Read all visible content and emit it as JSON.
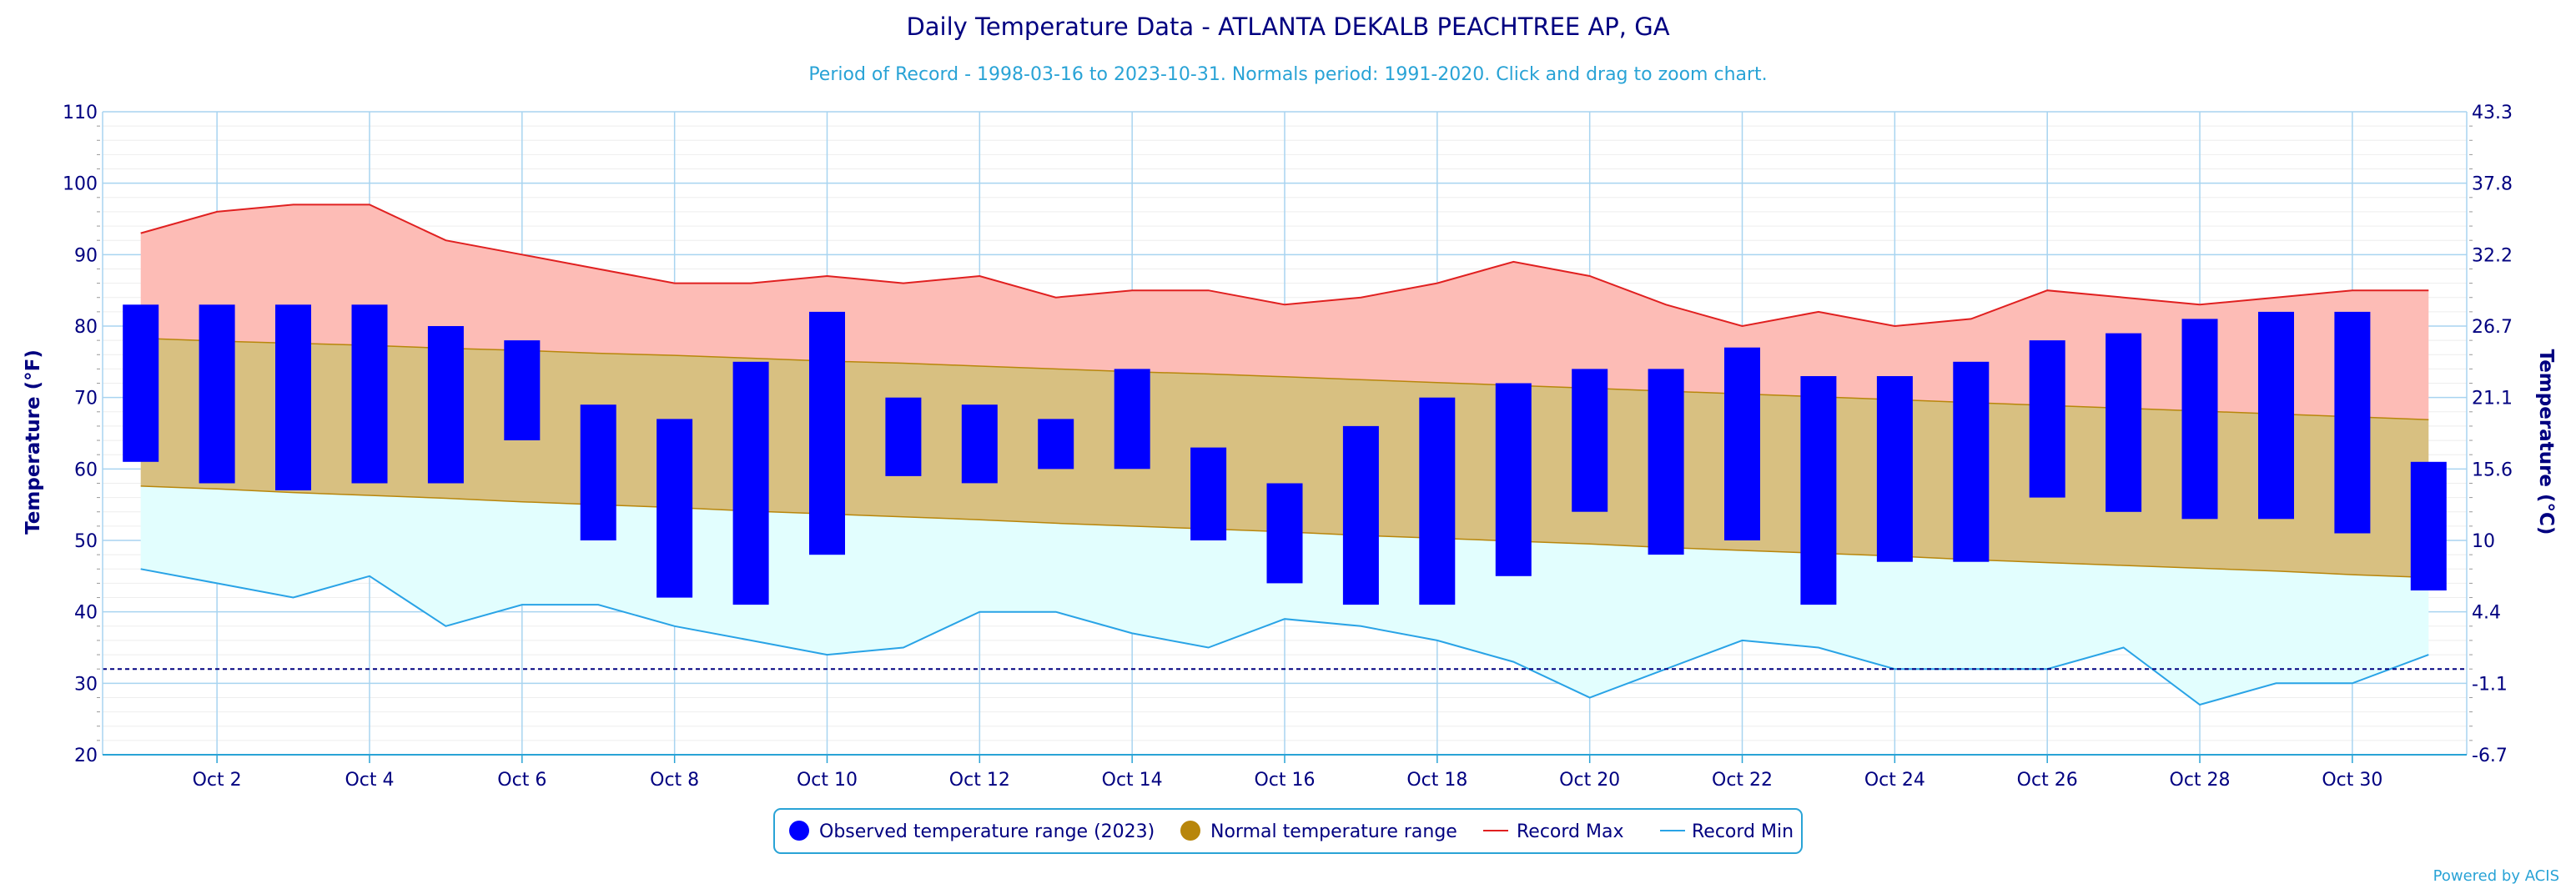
{
  "chart_data": {
    "type": "bar",
    "title": "Daily Temperature Data - ATLANTA DEKALB PEACHTREE AP, GA",
    "subtitle": "Period of Record - 1998-03-16 to 2023-10-31. Normals period: 1991-2020. Click and drag to zoom chart.",
    "ylabel_left": "Temperature (°F)",
    "ylabel_right": "Temperature (°C)",
    "ylim": [
      20,
      110
    ],
    "yticks": [
      20,
      30,
      40,
      50,
      60,
      70,
      80,
      90,
      100,
      110
    ],
    "yticks_right": [
      "-6.7",
      "-1.1",
      "4.4",
      "10",
      "15.6",
      "21.1",
      "26.7",
      "32.2",
      "37.8",
      "43.3"
    ],
    "xlim": [
      0.5,
      31.5
    ],
    "x_tick_days": [
      2,
      4,
      6,
      8,
      10,
      12,
      14,
      16,
      18,
      20,
      22,
      24,
      26,
      28,
      30
    ],
    "x_tick_labels": [
      "Oct 2",
      "Oct 4",
      "Oct 6",
      "Oct 8",
      "Oct 10",
      "Oct 12",
      "Oct 14",
      "Oct 16",
      "Oct 18",
      "Oct 20",
      "Oct 22",
      "Oct 24",
      "Oct 26",
      "Oct 28",
      "Oct 30"
    ],
    "days": [
      1,
      2,
      3,
      4,
      5,
      6,
      7,
      8,
      9,
      10,
      11,
      12,
      13,
      14,
      15,
      16,
      17,
      18,
      19,
      20,
      21,
      22,
      23,
      24,
      25,
      26,
      27,
      28,
      29,
      30,
      31
    ],
    "observed_max": [
      83,
      83,
      83,
      83,
      80,
      78,
      69,
      67,
      75,
      82,
      70,
      69,
      67,
      74,
      63,
      58,
      66,
      70,
      72,
      74,
      74,
      77,
      73,
      73,
      75,
      78,
      79,
      81,
      82,
      82,
      61
    ],
    "observed_min": [
      61,
      58,
      57,
      58,
      58,
      64,
      50,
      42,
      41,
      48,
      59,
      58,
      60,
      60,
      50,
      44,
      41,
      41,
      45,
      54,
      48,
      50,
      41,
      47,
      47,
      56,
      54,
      53,
      53,
      51,
      43
    ],
    "normal_max": [
      78.3,
      77.9,
      77.6,
      77.3,
      76.9,
      76.6,
      76.2,
      75.9,
      75.5,
      75.1,
      74.8,
      74.4,
      74.0,
      73.6,
      73.3,
      72.9,
      72.5,
      72.1,
      71.7,
      71.3,
      70.9,
      70.5,
      70.1,
      69.7,
      69.3,
      68.9,
      68.5,
      68.1,
      67.7,
      67.3,
      66.9
    ],
    "normal_min": [
      57.6,
      57.2,
      56.7,
      56.3,
      55.9,
      55.4,
      55.0,
      54.6,
      54.1,
      53.7,
      53.3,
      52.9,
      52.4,
      52.0,
      51.6,
      51.2,
      50.7,
      50.3,
      49.9,
      49.5,
      49.0,
      48.6,
      48.2,
      47.8,
      47.3,
      46.9,
      46.5,
      46.1,
      45.7,
      45.2,
      44.8
    ],
    "record_max": [
      93,
      96,
      97,
      97,
      92,
      90,
      88,
      86,
      86,
      87,
      86,
      87,
      84,
      85,
      85,
      83,
      84,
      86,
      89,
      87,
      83,
      80,
      82,
      80,
      81,
      85,
      84,
      83,
      84,
      85,
      85
    ],
    "record_min": [
      46,
      44,
      42,
      45,
      38,
      41,
      41,
      38,
      36,
      34,
      35,
      40,
      40,
      37,
      35,
      39,
      38,
      36,
      33,
      28,
      32,
      36,
      35,
      32,
      32,
      32,
      35,
      27,
      30,
      30,
      34
    ],
    "freezing_line": 32,
    "legend_position": "bottom-center",
    "legend": [
      "Observed temperature range (2023)",
      "Normal temperature range",
      "Record Max",
      "Record Min"
    ],
    "colors": {
      "observed": "#0000ff",
      "normal_fill": "#d8c081",
      "normal_edge": "#b8860b",
      "normal_legend": "#b8860b",
      "record_max_fill": "#fdbcb6",
      "record_max_line": "#e02020",
      "record_min_fill": "#e2fefe",
      "record_min_line": "#29a3e6",
      "grid": "#a8d4f0",
      "axis_text": "#000080",
      "freezing": "#000080"
    },
    "credit": "Powered by ACIS"
  }
}
